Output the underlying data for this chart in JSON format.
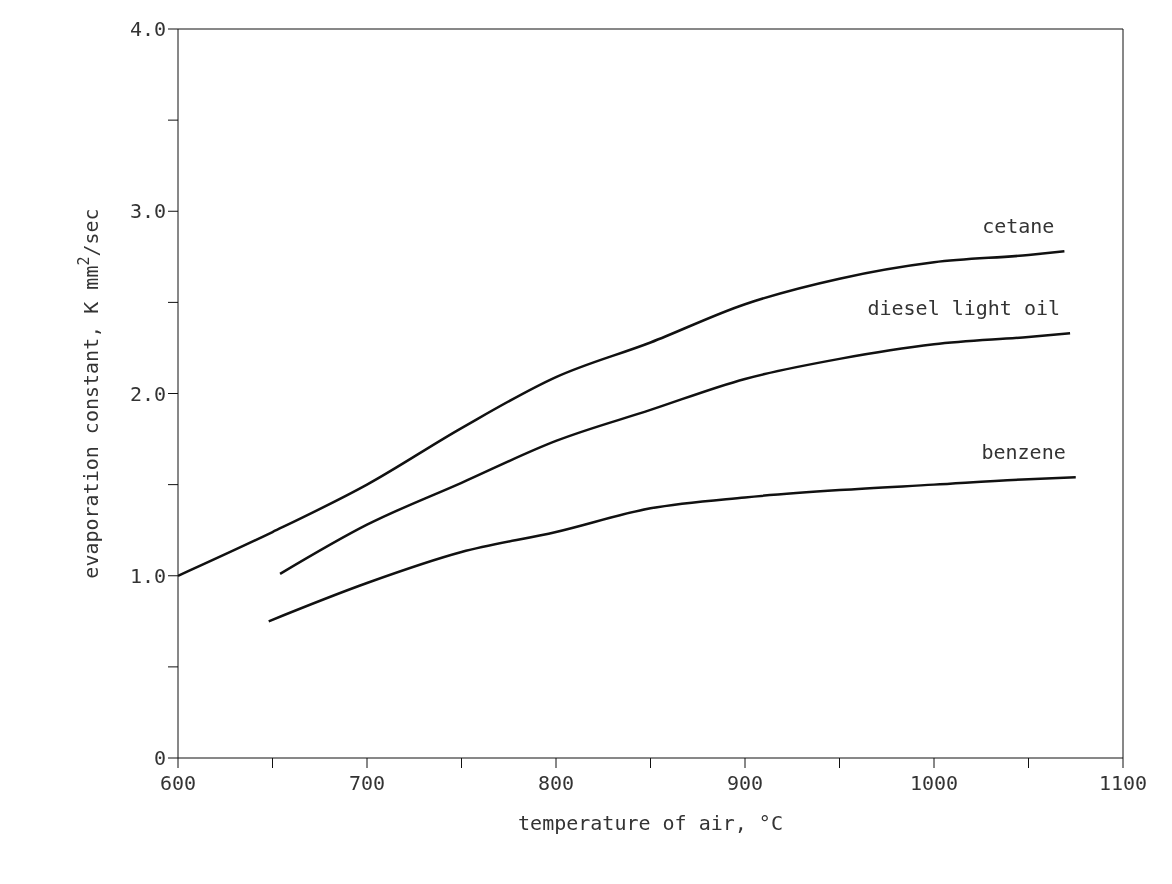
{
  "chart_data": {
    "type": "line",
    "xlabel": "temperature of air, °C",
    "ylabel": "evaporation constant, K mm$^{2}$/sec",
    "xlim": [
      600,
      1100
    ],
    "xticks": [
      600,
      {
        "value": 650,
        "label": null
      },
      700,
      {
        "value": 750,
        "label": null
      },
      800,
      {
        "value": 850,
        "label": null
      },
      900,
      {
        "value": 950,
        "label": null
      },
      1000,
      {
        "value": 1050,
        "label": null
      },
      1100
    ],
    "ylim": [
      0,
      4
    ],
    "yticks": [
      0,
      {
        "value": 0.5,
        "label": null
      },
      {
        "value": 1,
        "label": "1.0"
      },
      {
        "value": 1.5,
        "label": null
      },
      {
        "value": 2,
        "label": "2.0"
      },
      {
        "value": 2.5,
        "label": null
      },
      {
        "value": 3,
        "label": "3.0"
      },
      {
        "value": 3.5,
        "label": null
      },
      {
        "value": 4,
        "label": "4.0"
      }
    ],
    "marker": "none",
    "line_style": "solid",
    "series": [
      {
        "name": "cetane",
        "color": "#111111",
        "x": [
          600,
          650,
          700,
          750,
          800,
          850,
          900,
          950,
          1000,
          1050,
          1069
        ],
        "values": [
          1.0,
          1.24,
          1.5,
          1.81,
          2.09,
          2.28,
          2.49,
          2.63,
          2.72,
          2.76,
          2.78
        ]
      },
      {
        "name": "diesel light oil",
        "color": "#111111",
        "x": [
          654,
          700,
          750,
          800,
          850,
          900,
          950,
          1000,
          1050,
          1072
        ],
        "values": [
          1.01,
          1.28,
          1.51,
          1.74,
          1.91,
          2.08,
          2.19,
          2.27,
          2.31,
          2.33
        ]
      },
      {
        "name": "benzene",
        "color": "#111111",
        "x": [
          648,
          700,
          750,
          800,
          850,
          900,
          950,
          1000,
          1050,
          1075
        ],
        "values": [
          0.75,
          0.96,
          1.13,
          1.24,
          1.37,
          1.43,
          1.47,
          1.5,
          1.53,
          1.54
        ]
      }
    ]
  }
}
